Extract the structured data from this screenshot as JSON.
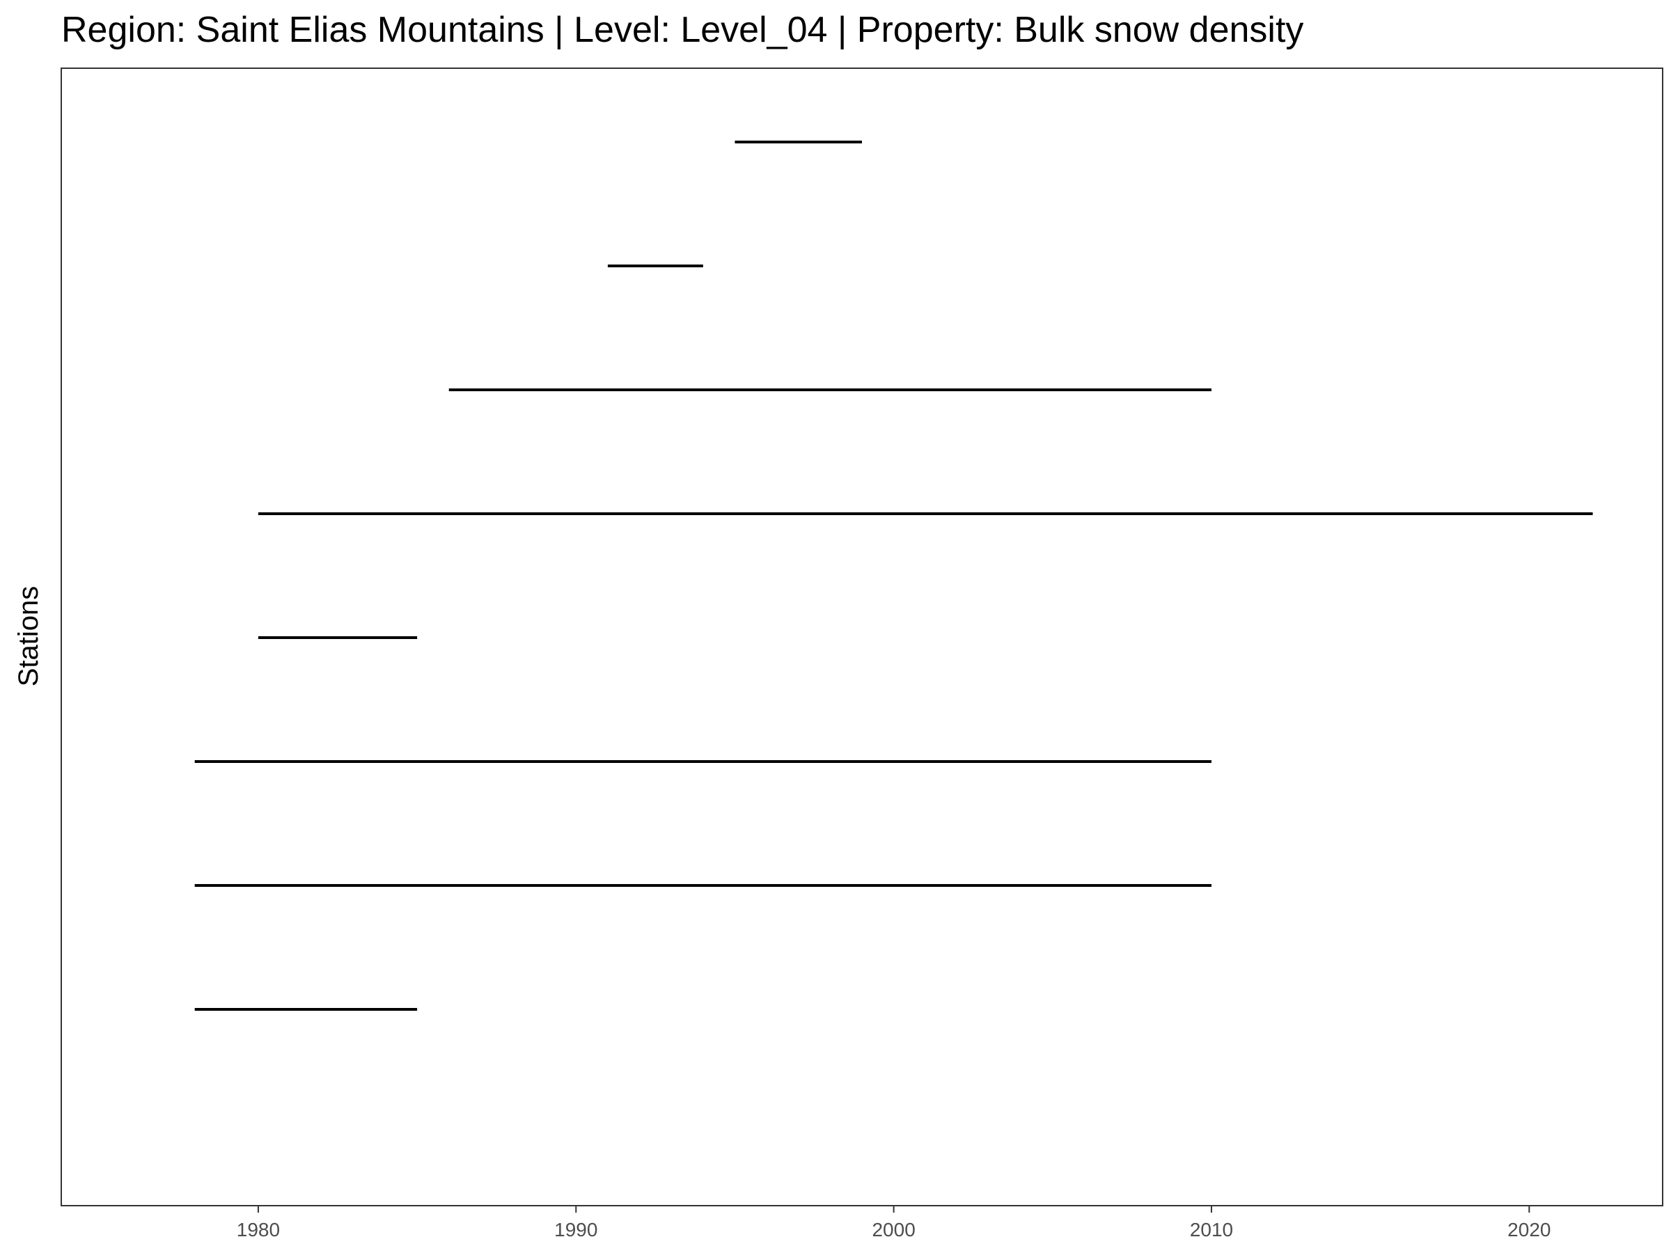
{
  "chart_data": {
    "type": "segment",
    "title": "Region: Saint Elias Mountains | Level: Level_04 | Property: Bulk snow density",
    "xlabel": "",
    "ylabel": "Stations",
    "xlim": [
      1973.8,
      2024.2
    ],
    "x_ticks": [
      "1980",
      "1990",
      "2000",
      "2010",
      "2020"
    ],
    "grid": false,
    "legend": "none",
    "segments": [
      {
        "start": 1978,
        "end": 1985
      },
      {
        "start": 1978,
        "end": 2010
      },
      {
        "start": 1978,
        "end": 2010
      },
      {
        "start": 1980,
        "end": 1985
      },
      {
        "start": 1980,
        "end": 2022
      },
      {
        "start": 1986,
        "end": 2010
      },
      {
        "start": 1991,
        "end": 1994
      },
      {
        "start": 1995,
        "end": 1999
      }
    ]
  }
}
